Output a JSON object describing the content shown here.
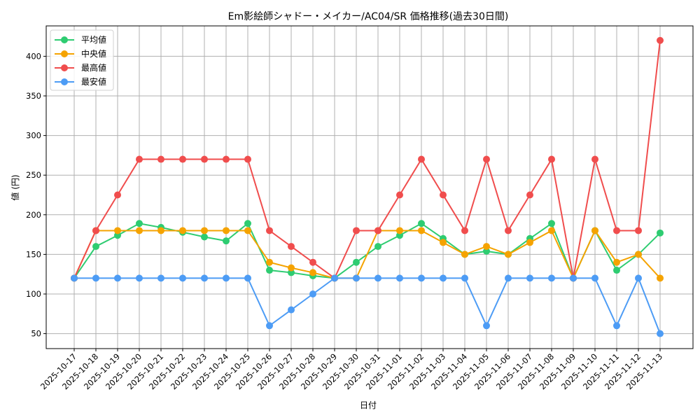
{
  "chart_data": {
    "type": "line",
    "title": "Em影絵師シャドー・メイカー/AC04/SR 価格推移(過去30日間)",
    "xlabel": "日付",
    "ylabel": "値 (円)",
    "ylim": [
      32,
      440
    ],
    "yticks": [
      50,
      100,
      150,
      200,
      250,
      300,
      350,
      400
    ],
    "grid": true,
    "legend_position": "upper left",
    "categories": [
      "2025-10-17",
      "2025-10-18",
      "2025-10-19",
      "2025-10-20",
      "2025-10-21",
      "2025-10-22",
      "2025-10-23",
      "2025-10-24",
      "2025-10-25",
      "2025-10-26",
      "2025-10-27",
      "2025-10-28",
      "2025-10-29",
      "2025-10-30",
      "2025-10-31",
      "2025-11-01",
      "2025-11-02",
      "2025-11-03",
      "2025-11-04",
      "2025-11-05",
      "2025-11-06",
      "2025-11-07",
      "2025-11-08",
      "2025-11-09",
      "2025-11-10",
      "2025-11-11",
      "2025-11-12",
      "2025-11-13"
    ],
    "series": [
      {
        "name": "平均値",
        "color": "#2ecc71",
        "values": [
          120,
          160,
          174,
          189,
          184,
          178,
          172,
          167,
          189,
          130,
          127,
          123,
          120,
          140,
          160,
          174,
          189,
          170,
          150,
          154,
          150,
          170,
          189,
          120,
          180,
          130,
          150,
          177
        ]
      },
      {
        "name": "中央値",
        "color": "#f5a300",
        "values": [
          120,
          180,
          180,
          180,
          180,
          180,
          180,
          180,
          180,
          140,
          133,
          127,
          120,
          120,
          180,
          180,
          180,
          165,
          150,
          160,
          150,
          165,
          180,
          120,
          180,
          140,
          150,
          120
        ]
      },
      {
        "name": "最高値",
        "color": "#f04d4d",
        "values": [
          120,
          180,
          225,
          270,
          270,
          270,
          270,
          270,
          270,
          180,
          160,
          140,
          120,
          180,
          180,
          225,
          270,
          225,
          180,
          270,
          180,
          225,
          270,
          120,
          270,
          180,
          180,
          420
        ]
      },
      {
        "name": "最安値",
        "color": "#4d9cf5",
        "values": [
          120,
          120,
          120,
          120,
          120,
          120,
          120,
          120,
          120,
          60,
          80,
          100,
          120,
          120,
          120,
          120,
          120,
          120,
          120,
          60,
          120,
          120,
          120,
          120,
          120,
          60,
          120,
          50
        ]
      }
    ]
  }
}
